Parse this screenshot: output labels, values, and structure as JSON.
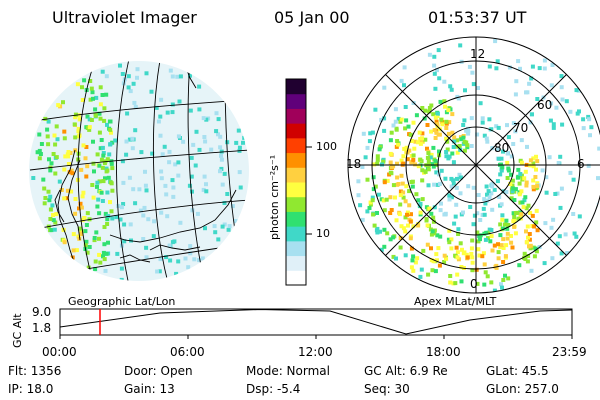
{
  "header": {
    "title": "Ultraviolet Imager",
    "date": "05 Jan 00",
    "time": "01:53:37 UT"
  },
  "colorbar": {
    "unit_label": "photon cm⁻²s⁻¹",
    "tick_100": "100",
    "tick_10": "10",
    "colors": [
      "#ffffff",
      "#e0f0f8",
      "#a8e0f0",
      "#40d8c8",
      "#30e070",
      "#90e830",
      "#ffff40",
      "#ffd040",
      "#ff9000",
      "#ff4000",
      "#d00000",
      "#a0005a",
      "#60007a",
      "#200030"
    ]
  },
  "polar_plot": {
    "latitude_labels": [
      "80",
      "70",
      "60"
    ],
    "mlt_labels": {
      "top": "12",
      "left": "18",
      "right": "6",
      "bottom": "0"
    }
  },
  "captions": {
    "geographic": "Geographic Lat/Lon",
    "apex": "Apex  MLat/MLT"
  },
  "altitude_chart": {
    "ylabel": "GC Alt",
    "ytick_high": "9.0",
    "ytick_low": "1.8",
    "xticks": [
      "00:00",
      "06:00",
      "12:00",
      "18:00",
      "23:59"
    ],
    "marker_time": "01:53:37",
    "marker_color": "#ff0000"
  },
  "info": {
    "flt": "Flt: 1356",
    "door": "Door: Open",
    "mode": "Mode: Normal",
    "gcalt": "GC Alt: 6.9 Re",
    "glat": "GLat:   45.5",
    "ip": "IP: 18.0",
    "gain": "Gain: 13",
    "dsp": "Dsp:   -5.4",
    "seq": "Seq: 30",
    "glon": "GLon: 257.0"
  }
}
